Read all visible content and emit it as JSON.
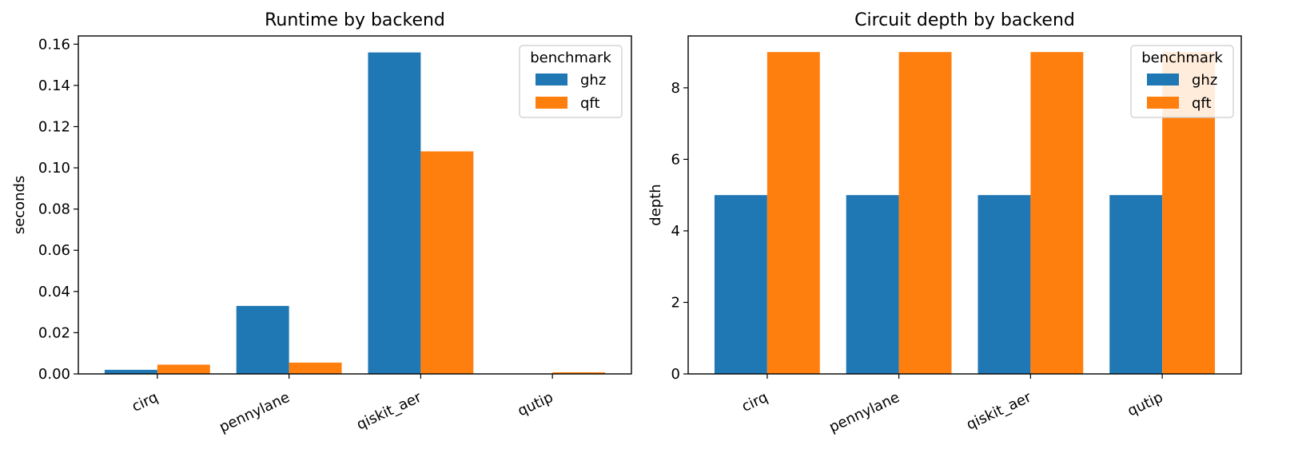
{
  "chart_data": [
    {
      "type": "bar",
      "title": "Runtime by backend",
      "xlabel": "",
      "ylabel": "seconds",
      "categories": [
        "cirq",
        "pennylane",
        "qiskit_aer",
        "qutip"
      ],
      "series": [
        {
          "name": "ghz",
          "values": [
            0.002,
            0.033,
            0.156,
            0.0002
          ]
        },
        {
          "name": "qft",
          "values": [
            0.0045,
            0.0055,
            0.108,
            0.0008
          ]
        }
      ],
      "ylim": [
        0,
        0.164
      ],
      "yticks": [
        "0.00",
        "0.02",
        "0.04",
        "0.06",
        "0.08",
        "0.10",
        "0.12",
        "0.14",
        "0.16"
      ],
      "ytick_values": [
        0,
        0.02,
        0.04,
        0.06,
        0.08,
        0.1,
        0.12,
        0.14,
        0.16
      ],
      "legend": {
        "title": "benchmark",
        "placement": "top-right"
      },
      "grid": false
    },
    {
      "type": "bar",
      "title": "Circuit depth by backend",
      "xlabel": "",
      "ylabel": "depth",
      "categories": [
        "cirq",
        "pennylane",
        "qiskit_aer",
        "qutip"
      ],
      "series": [
        {
          "name": "ghz",
          "values": [
            5,
            5,
            5,
            5
          ]
        },
        {
          "name": "qft",
          "values": [
            9,
            9,
            9,
            9
          ]
        }
      ],
      "ylim": [
        0,
        9.45
      ],
      "yticks": [
        "0",
        "2",
        "4",
        "6",
        "8"
      ],
      "ytick_values": [
        0,
        2,
        4,
        6,
        8
      ],
      "legend": {
        "title": "benchmark",
        "placement": "top-right"
      },
      "grid": false
    }
  ],
  "colors": {
    "ghz": "#1f77b4",
    "qft": "#ff7f0e"
  }
}
